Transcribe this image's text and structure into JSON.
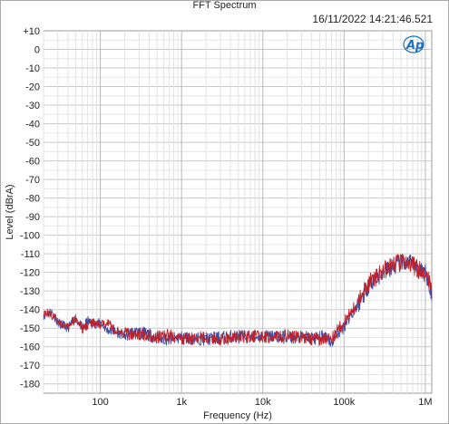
{
  "chart_data": {
    "type": "line",
    "title": "FFT Spectrum",
    "timestamp": "16/11/2022 14:21:46.521",
    "xlabel": "Frequency (Hz)",
    "ylabel": "Level (dBrA)",
    "x_scale": "log",
    "xlim": [
      20,
      1200000
    ],
    "ylim": [
      -185,
      10
    ],
    "x_ticks": [
      {
        "value": 100,
        "label": "100"
      },
      {
        "value": 1000,
        "label": "1k"
      },
      {
        "value": 10000,
        "label": "10k"
      },
      {
        "value": 100000,
        "label": "100k"
      },
      {
        "value": 1000000,
        "label": "1M"
      }
    ],
    "y_ticks": [
      {
        "value": 10,
        "label": "+10"
      },
      {
        "value": 0,
        "label": "0"
      },
      {
        "value": -10,
        "label": "-10"
      },
      {
        "value": -20,
        "label": "-20"
      },
      {
        "value": -30,
        "label": "-30"
      },
      {
        "value": -40,
        "label": "-40"
      },
      {
        "value": -50,
        "label": "-50"
      },
      {
        "value": -60,
        "label": "-60"
      },
      {
        "value": -70,
        "label": "-70"
      },
      {
        "value": -80,
        "label": "-80"
      },
      {
        "value": -90,
        "label": "-90"
      },
      {
        "value": -100,
        "label": "-100"
      },
      {
        "value": -110,
        "label": "-110"
      },
      {
        "value": -120,
        "label": "-120"
      },
      {
        "value": -130,
        "label": "-130"
      },
      {
        "value": -140,
        "label": "-140"
      },
      {
        "value": -150,
        "label": "-150"
      },
      {
        "value": -160,
        "label": "-160"
      },
      {
        "value": -170,
        "label": "-170"
      },
      {
        "value": -180,
        "label": "-180"
      }
    ],
    "grid": true,
    "series": [
      {
        "color": "#3b4fa3",
        "x": [
          20,
          25,
          30,
          40,
          50,
          60,
          70,
          80,
          100,
          120,
          150,
          200,
          300,
          500,
          700,
          1000,
          2000,
          3000,
          5000,
          7000,
          10000,
          20000,
          30000,
          50000,
          60000,
          70000,
          80000,
          100000,
          120000,
          150000,
          200000,
          300000,
          400000,
          500000,
          600000,
          700000,
          800000,
          1000000,
          1100000,
          1200000
        ],
        "y": [
          -143,
          -141,
          -147,
          -150,
          -144,
          -150,
          -146,
          -148,
          -147,
          -151,
          -152,
          -154,
          -152,
          -155,
          -156,
          -155,
          -156,
          -155,
          -154,
          -155,
          -154,
          -155,
          -155,
          -155,
          -154,
          -158,
          -154,
          -149,
          -143,
          -137,
          -127,
          -120,
          -117,
          -115,
          -115,
          -116,
          -117,
          -120,
          -124,
          -133
        ]
      },
      {
        "color": "#c02028",
        "x": [
          20,
          25,
          30,
          40,
          50,
          60,
          70,
          80,
          100,
          120,
          150,
          200,
          300,
          500,
          700,
          1000,
          2000,
          3000,
          5000,
          7000,
          10000,
          20000,
          30000,
          50000,
          60000,
          70000,
          80000,
          100000,
          120000,
          150000,
          200000,
          300000,
          400000,
          500000,
          600000,
          700000,
          800000,
          1000000,
          1100000,
          1200000
        ],
        "y": [
          -141,
          -143,
          -146,
          -150,
          -145,
          -151,
          -148,
          -147,
          -149,
          -146,
          -151,
          -153,
          -153,
          -155,
          -154,
          -156,
          -155,
          -156,
          -155,
          -154,
          -155,
          -154,
          -155,
          -156,
          -155,
          -156,
          -152,
          -147,
          -142,
          -136,
          -126,
          -119,
          -116,
          -114,
          -115,
          -116,
          -118,
          -121,
          -123,
          -130
        ]
      }
    ]
  }
}
